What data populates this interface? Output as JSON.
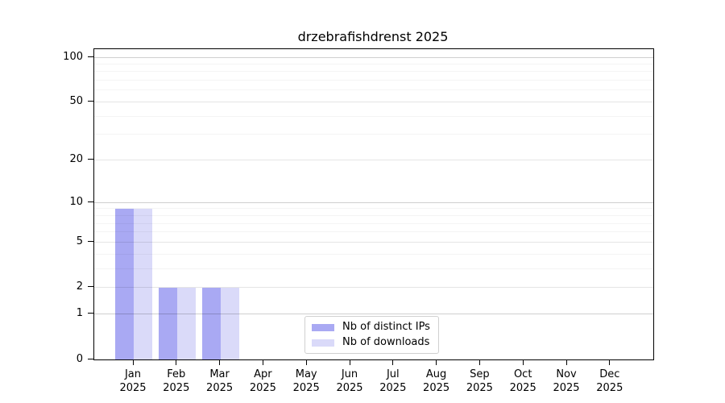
{
  "title": "drzebrafishdrenst 2025",
  "colors": {
    "distinct_ips": "#a9a9f3",
    "downloads": "#dadaf9",
    "grid_strong": "rgba(0,0,0,0.19)",
    "grid_light": "rgba(0,0,0,0.10)",
    "grid_minor": "rgba(0,0,0,0.045)",
    "axis": "#000000",
    "legend_border": "#d0d0d0"
  },
  "legend": {
    "items": [
      {
        "key": "distinct_ips",
        "label": "Nb of distinct IPs"
      },
      {
        "key": "downloads",
        "label": "Nb of downloads"
      }
    ]
  },
  "chart_data": {
    "type": "bar",
    "title": "drzebrafishdrenst 2025",
    "categories": [
      "Jan",
      "Feb",
      "Mar",
      "Apr",
      "May",
      "Jun",
      "Jul",
      "Aug",
      "Sep",
      "Oct",
      "Nov",
      "Dec"
    ],
    "year_label": "2025",
    "series": [
      {
        "name": "Nb of distinct IPs",
        "color_key": "distinct_ips",
        "values": [
          9,
          2,
          2,
          0,
          0,
          0,
          0,
          0,
          0,
          0,
          0,
          0
        ]
      },
      {
        "name": "Nb of downloads",
        "color_key": "downloads",
        "values": [
          9,
          2,
          2,
          0,
          0,
          0,
          0,
          0,
          0,
          0,
          0,
          0
        ]
      }
    ],
    "y_ticks": [
      0,
      1,
      2,
      5,
      10,
      20,
      50,
      100
    ],
    "y_ticks_strong_grid": [
      1,
      10,
      100
    ],
    "y_minor_ticks": [
      3,
      4,
      6,
      7,
      8,
      9,
      30,
      40,
      60,
      70,
      80,
      90
    ],
    "y_scale": "log1p",
    "ylim": [
      0,
      113
    ],
    "grid": "horizontal",
    "legend_position": "bottom-center",
    "xlabel": "",
    "ylabel": ""
  }
}
